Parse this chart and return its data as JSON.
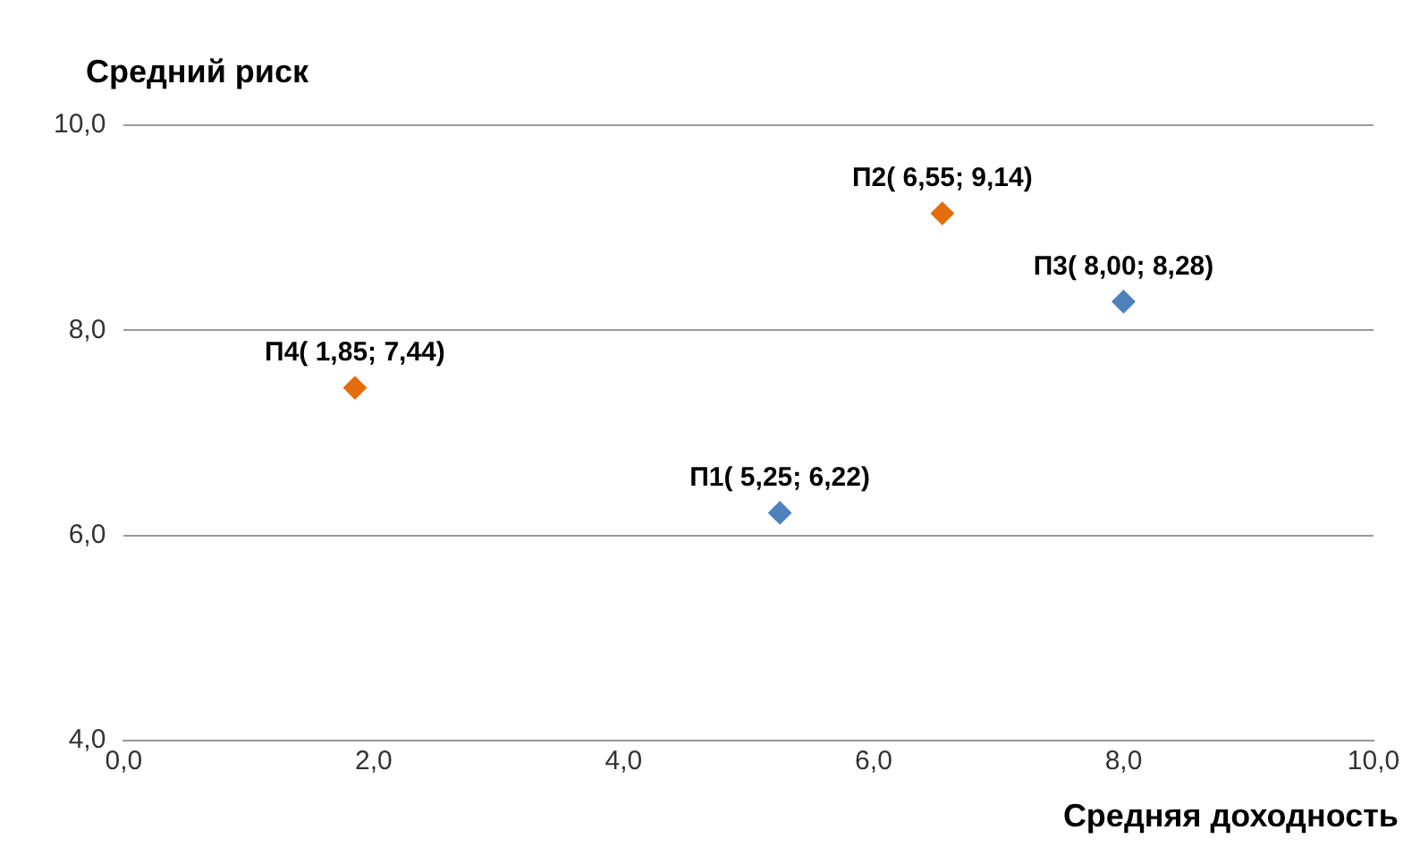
{
  "chart_data": {
    "type": "scatter",
    "xlabel": "Средняя доходность",
    "ylabel": "Средний риск",
    "x": [
      5.25,
      6.55,
      8.0,
      1.85
    ],
    "values": [
      6.22,
      9.14,
      8.28,
      7.44
    ],
    "colors": [
      "#4f81bd",
      "#e46c0a",
      "#4f81bd",
      "#e46c0a"
    ],
    "xlim": [
      0,
      10
    ],
    "xticks": [
      {
        "value": 0,
        "label": "0,0"
      },
      {
        "value": 2,
        "label": "2,0"
      },
      {
        "value": 4,
        "label": "4,0"
      },
      {
        "value": 6,
        "label": "6,0"
      },
      {
        "value": 8,
        "label": "8,0"
      },
      {
        "value": 10,
        "label": "10,0"
      }
    ],
    "ylim": [
      4,
      10
    ],
    "yticks": [
      {
        "value": 4,
        "label": "4,0"
      },
      {
        "value": 6,
        "label": "6,0"
      },
      {
        "value": 8,
        "label": "8,0"
      },
      {
        "value": 10,
        "label": "10,0"
      }
    ],
    "grid": "y",
    "legend": false,
    "marker": "diamond",
    "annotations": [
      {
        "text": "П1( 5,25; 6,22)",
        "x": 5.25,
        "y": 6.22
      },
      {
        "text": "П2( 6,55; 9,14)",
        "x": 6.55,
        "y": 9.14
      },
      {
        "text": "П3( 8,00; 8,28)",
        "x": 8.0,
        "y": 8.28
      },
      {
        "text": "П4( 1,85; 7,44)",
        "x": 1.85,
        "y": 7.44
      }
    ]
  }
}
